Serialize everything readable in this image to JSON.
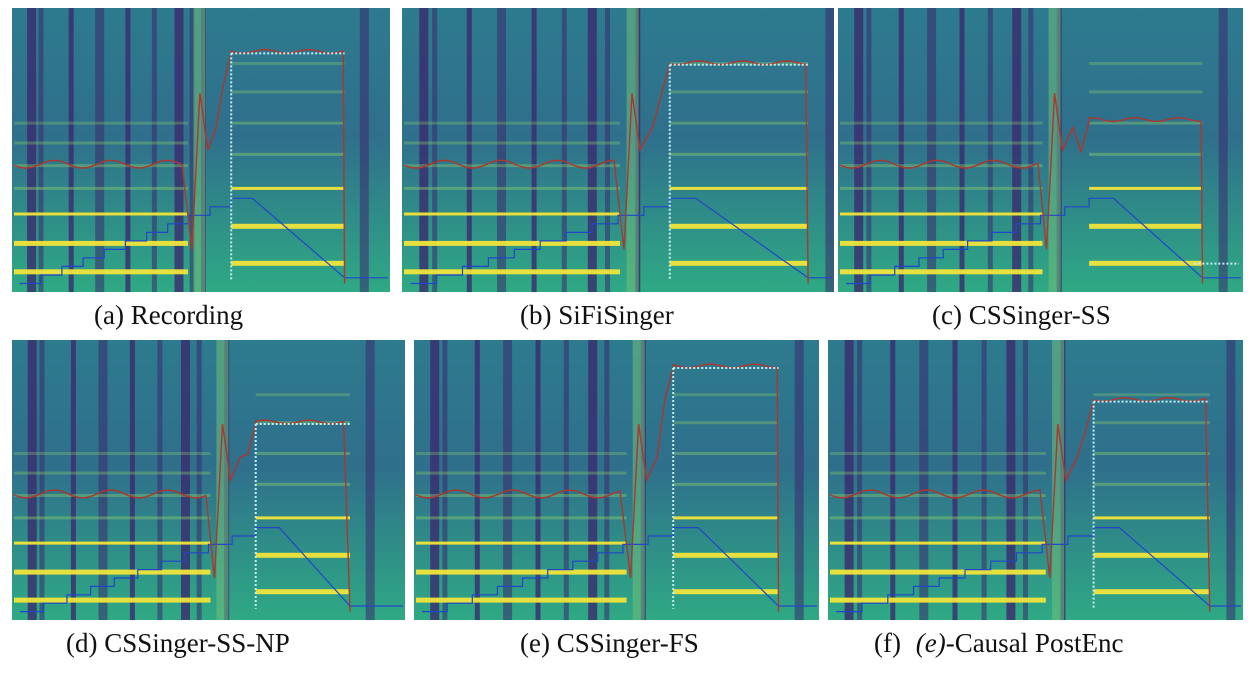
{
  "figure": {
    "panels": [
      {
        "id": "a",
        "caption": "(a) Recording"
      },
      {
        "id": "b",
        "caption": "(b) SiFiSinger"
      },
      {
        "id": "c",
        "caption": "(c) CSSinger-SS"
      },
      {
        "id": "d",
        "caption": "(d) CSSinger-SS-NP"
      },
      {
        "id": "e",
        "caption": "(e) CSSinger-FS"
      },
      {
        "id": "f",
        "caption_prefix": "(f)",
        "caption_var": "(e)",
        "caption_suffix": "-Causal PostEnc"
      }
    ]
  },
  "colors": {
    "spec_low": "#3b2a6e",
    "spec_mid": "#2d7b8e",
    "spec_high": "#2fa984",
    "harmonic": "#f0e53a",
    "f0_curve": "#b0352b",
    "note_line": "#2146c8",
    "dotted": "#bfeff5"
  }
}
